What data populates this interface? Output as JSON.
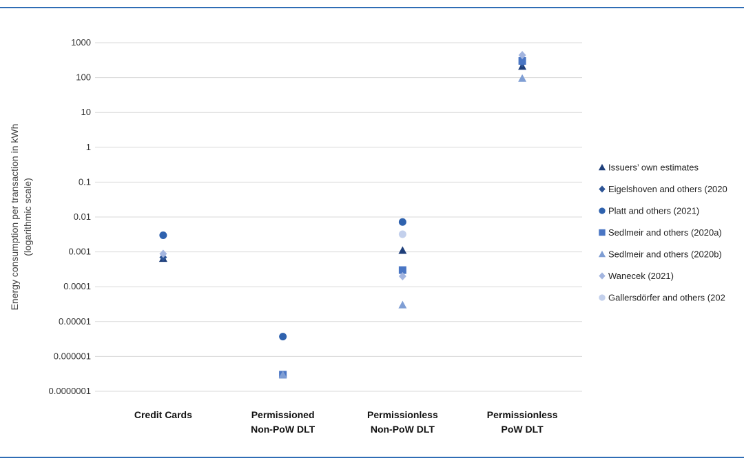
{
  "chart_data": {
    "type": "scatter",
    "title": "",
    "xlabel": "",
    "ylabel_line1": "Energy consumption per transaction in kWh",
    "ylabel_line2": "(logarithmic scale)",
    "y_scale": "log",
    "ylim": [
      1e-07,
      1000
    ],
    "yticks": [
      "1000",
      "100",
      "10",
      "1",
      "0.1",
      "0.01",
      "0.001",
      "0.0001",
      "0.00001",
      "0.000001",
      "0.0000001"
    ],
    "categories": [
      "Credit Cards",
      "Permissioned Non-PoW DLT",
      "Permissionless Non-PoW DLT",
      "Permissionless PoW DLT"
    ],
    "category_lines": [
      [
        "Credit Cards"
      ],
      [
        "Permissioned",
        "Non-PoW DLT"
      ],
      [
        "Permissionless",
        "Non-PoW DLT"
      ],
      [
        "Permissionless",
        "PoW DLT"
      ]
    ],
    "grid": true,
    "legend_position": "right",
    "series": [
      {
        "name": "Issuers’ own estimates",
        "marker": "triangle",
        "color": "#1f3f7a",
        "values": [
          0.00065,
          null,
          0.0011,
          210
        ]
      },
      {
        "name": "Eigelshoven and others (2020",
        "marker": "diamond",
        "color": "#2e5596",
        "values": [
          0.0007,
          null,
          null,
          260
        ]
      },
      {
        "name": "Platt and others (2021)",
        "marker": "circle",
        "color": "#2f62ae",
        "values": [
          0.003,
          3.7e-06,
          0.0072,
          null
        ]
      },
      {
        "name": "Sedlmeir and others (2020a)",
        "marker": "square",
        "color": "#4a76c4",
        "values": [
          null,
          3e-07,
          0.0003,
          300
        ]
      },
      {
        "name": "Sedlmeir and others (2020b)",
        "marker": "triangle",
        "color": "#7f9ed4",
        "values": [
          null,
          3e-07,
          3e-05,
          95
        ]
      },
      {
        "name": "Wanecek (2021)",
        "marker": "diamond",
        "color": "#a3b5df",
        "values": [
          0.00088,
          null,
          0.0002,
          440
        ]
      },
      {
        "name": "Gallersdörfer and others (202",
        "marker": "circle",
        "color": "#c3d0ec",
        "values": [
          null,
          null,
          0.0032,
          null
        ]
      }
    ]
  }
}
